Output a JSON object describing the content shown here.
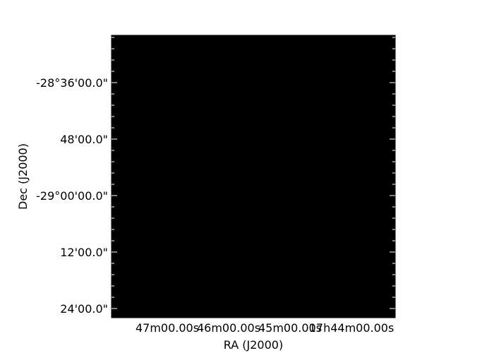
{
  "chart_data": {
    "type": "heatmap",
    "background_color": "#000000",
    "xlabel": "RA (J2000)",
    "ylabel": "Dec (J2000)",
    "x_ticks": [
      {
        "label": "47m00.00s",
        "major": true
      },
      {
        "label": "46m00.00s",
        "major": true
      },
      {
        "label": "45m00.00s",
        "major": true
      },
      {
        "label": "17h44m00.00s",
        "major": true
      }
    ],
    "y_ticks": [
      {
        "label": "-28°36'00.0\"",
        "major": true
      },
      {
        "label": "48'00.0\"",
        "major": true
      },
      {
        "label": "-29°00'00.0\"",
        "major": true
      },
      {
        "label": "12'00.0\"",
        "major": true
      },
      {
        "label": "24'00.0\"",
        "major": true
      }
    ]
  }
}
